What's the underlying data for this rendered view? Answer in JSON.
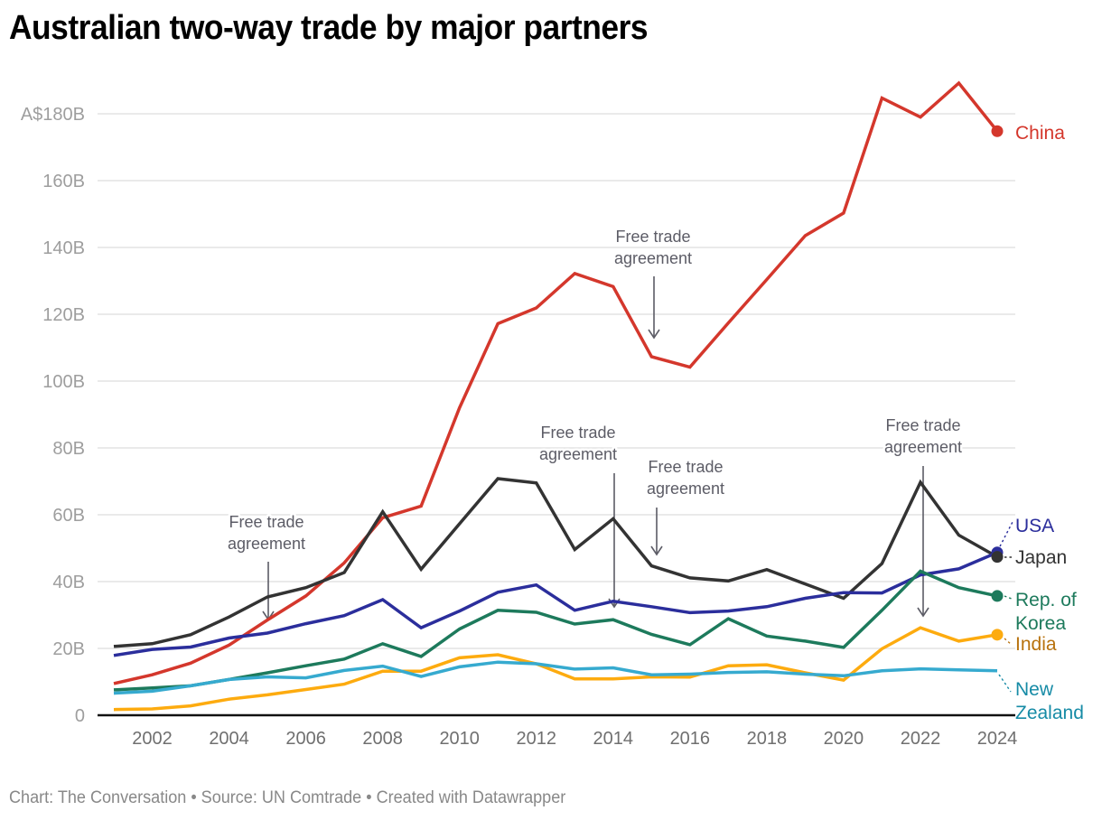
{
  "chart_data": {
    "type": "line",
    "title": "Australian two-way trade by major partners",
    "xlabel": "",
    "ylabel": "",
    "x": [
      2001,
      2002,
      2003,
      2004,
      2005,
      2006,
      2007,
      2008,
      2009,
      2010,
      2011,
      2012,
      2013,
      2014,
      2015,
      2016,
      2017,
      2018,
      2019,
      2020,
      2021,
      2022,
      2023,
      2024
    ],
    "xlim": [
      2001,
      2024
    ],
    "ylim": [
      0,
      180
    ],
    "grid": true,
    "y_ticks": [
      {
        "value": 0,
        "label": "0"
      },
      {
        "value": 20,
        "label": "20B"
      },
      {
        "value": 40,
        "label": "40B"
      },
      {
        "value": 60,
        "label": "60B"
      },
      {
        "value": 80,
        "label": "80B"
      },
      {
        "value": 100,
        "label": "100B"
      },
      {
        "value": 120,
        "label": "120B"
      },
      {
        "value": 140,
        "label": "140B"
      },
      {
        "value": 160,
        "label": "160B"
      },
      {
        "value": 180,
        "label": "A$180B"
      }
    ],
    "x_ticks": [
      {
        "value": 2002,
        "label": "2002"
      },
      {
        "value": 2004,
        "label": "2004"
      },
      {
        "value": 2006,
        "label": "2006"
      },
      {
        "value": 2008,
        "label": "2008"
      },
      {
        "value": 2010,
        "label": "2010"
      },
      {
        "value": 2012,
        "label": "2012"
      },
      {
        "value": 2014,
        "label": "2014"
      },
      {
        "value": 2016,
        "label": "2016"
      },
      {
        "value": 2018,
        "label": "2018"
      },
      {
        "value": 2020,
        "label": "2020"
      },
      {
        "value": 2022,
        "label": "2022"
      },
      {
        "value": 2024,
        "label": "2024"
      }
    ],
    "series": [
      {
        "name": "China",
        "label": [
          "China"
        ],
        "color": "#d4372c",
        "label_color": "#d4372c",
        "end_dot": true,
        "values": [
          9.5,
          12.1,
          15.6,
          21.0,
          28.5,
          35.7,
          45.6,
          59.1,
          62.6,
          92.0,
          117.2,
          121.9,
          132.2,
          128.3,
          107.3,
          104.2,
          117.4,
          130.4,
          143.5,
          150.3,
          184.7,
          179.0,
          189.2,
          174.8
        ]
      },
      {
        "name": "Japan",
        "label": [
          "Japan"
        ],
        "color": "#333333",
        "label_color": "#333333",
        "end_dot": true,
        "values": [
          20.6,
          21.4,
          24.1,
          29.4,
          35.4,
          38.2,
          42.7,
          60.9,
          43.7,
          57.3,
          70.8,
          69.5,
          49.6,
          58.8,
          44.7,
          41.1,
          40.2,
          43.6,
          39.3,
          35.0,
          45.4,
          69.7,
          53.9,
          47.4
        ]
      },
      {
        "name": "USA",
        "label": [
          "USA"
        ],
        "color": "#2b2e9c",
        "label_color": "#2b2e9c",
        "end_dot": true,
        "values": [
          17.9,
          19.7,
          20.4,
          23.1,
          24.6,
          27.4,
          29.8,
          34.6,
          26.2,
          31.2,
          36.8,
          39.0,
          31.4,
          34.1,
          32.5,
          30.7,
          31.2,
          32.5,
          35.0,
          36.7,
          36.6,
          42.0,
          43.8,
          48.7
        ]
      },
      {
        "name": "Rep. of Korea",
        "label": [
          "Rep. of",
          "Korea"
        ],
        "color": "#1d7a5c",
        "label_color": "#1d7a5c",
        "end_dot": true,
        "values": [
          7.6,
          8.2,
          8.8,
          10.7,
          12.7,
          14.8,
          16.8,
          21.4,
          17.6,
          25.8,
          31.4,
          30.8,
          27.3,
          28.6,
          24.2,
          21.1,
          28.9,
          23.7,
          22.2,
          20.3,
          31.4,
          43.1,
          38.2,
          35.7
        ]
      },
      {
        "name": "India",
        "label": [
          "India"
        ],
        "color": "#fdab0f",
        "label_color": "#b8720e",
        "end_dot": true,
        "values": [
          1.7,
          1.9,
          2.8,
          4.8,
          6.1,
          7.7,
          9.3,
          13.2,
          13.2,
          17.2,
          18.1,
          15.4,
          10.9,
          10.9,
          11.5,
          11.4,
          14.8,
          15.1,
          12.7,
          10.5,
          19.9,
          26.2,
          22.2,
          24.1
        ]
      },
      {
        "name": "New Zealand",
        "label": [
          "New",
          "Zealand"
        ],
        "color": "#36aacf",
        "label_color": "#168ba6",
        "end_dot": false,
        "values": [
          6.6,
          7.2,
          8.8,
          10.7,
          11.5,
          11.2,
          13.4,
          14.7,
          11.6,
          14.5,
          15.9,
          15.4,
          13.8,
          14.2,
          12.1,
          12.3,
          12.8,
          13.0,
          12.3,
          11.8,
          13.3,
          13.9,
          13.6,
          13.3
        ]
      }
    ],
    "annotations": [
      {
        "text": [
          "Free trade",
          "agreement"
        ],
        "year": 2005,
        "target_series": "USA"
      },
      {
        "text": [
          "Free trade",
          "agreement"
        ],
        "year": 2014,
        "target_series": "Japan"
      },
      {
        "text": [
          "Free trade",
          "agreement"
        ],
        "year": 2015,
        "target_series": "Rep. of Korea"
      },
      {
        "text": [
          "Free trade",
          "agreement"
        ],
        "year": 2015,
        "target_series": "China"
      },
      {
        "text": [
          "Free trade",
          "agreement"
        ],
        "year": 2022,
        "target_series": "India"
      }
    ],
    "legend": "direct labels at right end of lines"
  },
  "header": {
    "title": "Australian two-way trade by major partners"
  },
  "footer": {
    "text": "Chart: The Conversation • Source: UN Comtrade • Created with Datawrapper"
  }
}
